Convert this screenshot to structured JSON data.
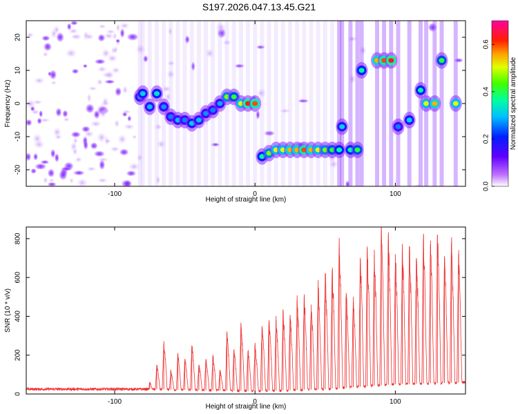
{
  "figure": {
    "title": "S197.2026.047.13.45.G21"
  },
  "chart_data": [
    {
      "type": "heatmap",
      "title": "",
      "xlabel": "Height of straight line (km)",
      "ylabel": "Frequency (Hz)",
      "xlim": [
        -163,
        150
      ],
      "ylim": [
        -25,
        25
      ],
      "xticks": [
        -100,
        0,
        100
      ],
      "yticks": [
        -20,
        -10,
        0,
        10,
        20
      ],
      "colorbar": {
        "label": "Normalized spectral amplitude",
        "range": [
          0.0,
          0.7
        ],
        "ticks": [
          0.0,
          0.2,
          0.4,
          0.6
        ]
      },
      "colormap": [
        "#ffffff",
        "#9b30ff",
        "#0000ff",
        "#00ffff",
        "#00ff00",
        "#ffff00",
        "#ff8000",
        "#ff0000",
        "#ff00c0"
      ],
      "main_track": [
        {
          "x": -82,
          "f": 2,
          "amp": 0.3
        },
        {
          "x": -80,
          "f": 3,
          "amp": 0.3
        },
        {
          "x": -75,
          "f": -1,
          "amp": 0.28
        },
        {
          "x": -70,
          "f": 3,
          "amp": 0.32
        },
        {
          "x": -65,
          "f": -1,
          "amp": 0.26
        },
        {
          "x": -60,
          "f": -4,
          "amp": 0.25
        },
        {
          "x": -55,
          "f": -5,
          "amp": 0.28
        },
        {
          "x": -50,
          "f": -5,
          "amp": 0.25
        },
        {
          "x": -45,
          "f": -6,
          "amp": 0.3
        },
        {
          "x": -40,
          "f": -5,
          "amp": 0.28
        },
        {
          "x": -35,
          "f": -3,
          "amp": 0.26
        },
        {
          "x": -30,
          "f": -2,
          "amp": 0.25
        },
        {
          "x": -25,
          "f": 0,
          "amp": 0.27
        },
        {
          "x": -20,
          "f": 2,
          "amp": 0.45
        },
        {
          "x": -15,
          "f": 2,
          "amp": 0.4
        },
        {
          "x": -10,
          "f": 0,
          "amp": 0.5
        },
        {
          "x": -5,
          "f": 0,
          "amp": 0.62
        },
        {
          "x": 0,
          "f": 0,
          "amp": 0.6
        },
        {
          "x": 5,
          "f": -16,
          "amp": 0.35
        },
        {
          "x": 10,
          "f": -15,
          "amp": 0.45
        },
        {
          "x": 15,
          "f": -14,
          "amp": 0.5
        },
        {
          "x": 20,
          "f": -14,
          "amp": 0.5
        },
        {
          "x": 25,
          "f": -14,
          "amp": 0.55
        },
        {
          "x": 30,
          "f": -14,
          "amp": 0.55
        },
        {
          "x": 35,
          "f": -14,
          "amp": 0.6
        },
        {
          "x": 40,
          "f": -14,
          "amp": 0.55
        },
        {
          "x": 45,
          "f": -14,
          "amp": 0.5
        },
        {
          "x": 50,
          "f": -14,
          "amp": 0.45
        },
        {
          "x": 55,
          "f": -14,
          "amp": 0.4
        },
        {
          "x": 60,
          "f": -14,
          "amp": 0.35
        },
        {
          "x": 62,
          "f": -7,
          "amp": 0.3
        },
        {
          "x": 68,
          "f": -14,
          "amp": 0.35
        },
        {
          "x": 73,
          "f": -14,
          "amp": 0.4
        },
        {
          "x": 76,
          "f": 10,
          "amp": 0.35
        },
        {
          "x": 87,
          "f": 13,
          "amp": 0.55
        },
        {
          "x": 92,
          "f": 13,
          "amp": 0.6
        },
        {
          "x": 97,
          "f": 13,
          "amp": 0.65
        },
        {
          "x": 102,
          "f": -7,
          "amp": 0.25
        },
        {
          "x": 110,
          "f": -5,
          "amp": 0.3
        },
        {
          "x": 118,
          "f": 4,
          "amp": 0.35
        },
        {
          "x": 122,
          "f": 0,
          "amp": 0.5
        },
        {
          "x": 128,
          "f": 0,
          "amp": 0.55
        },
        {
          "x": 133,
          "f": 13,
          "amp": 0.4
        },
        {
          "x": 143,
          "f": 0,
          "amp": 0.5
        }
      ]
    },
    {
      "type": "line",
      "title": "",
      "xlabel": "Height of straight line (km)",
      "ylabel": "SNR (10 * v/v)",
      "xlim": [
        -163,
        150
      ],
      "ylim": [
        0,
        860
      ],
      "xticks": [
        -100,
        0,
        100
      ],
      "yticks": [
        0,
        200,
        400,
        600,
        800
      ],
      "line_color": "#ee3030",
      "pulse_spacing_km": 5,
      "baseline": [
        {
          "x": -163,
          "y": 25
        },
        {
          "x": -80,
          "y": 25
        },
        {
          "x": -40,
          "y": 20
        },
        {
          "x": 0,
          "y": 15
        },
        {
          "x": 50,
          "y": 25
        },
        {
          "x": 100,
          "y": 50
        },
        {
          "x": 150,
          "y": 60
        }
      ],
      "pulse_peaks": [
        {
          "x": -75,
          "y": 60
        },
        {
          "x": -70,
          "y": 150
        },
        {
          "x": -65,
          "y": 260
        },
        {
          "x": -60,
          "y": 120
        },
        {
          "x": -55,
          "y": 200
        },
        {
          "x": -50,
          "y": 180
        },
        {
          "x": -45,
          "y": 250
        },
        {
          "x": -40,
          "y": 150
        },
        {
          "x": -35,
          "y": 180
        },
        {
          "x": -30,
          "y": 190
        },
        {
          "x": -25,
          "y": 120
        },
        {
          "x": -20,
          "y": 310
        },
        {
          "x": -15,
          "y": 230
        },
        {
          "x": -10,
          "y": 360
        },
        {
          "x": -5,
          "y": 220
        },
        {
          "x": 0,
          "y": 250
        },
        {
          "x": 5,
          "y": 350
        },
        {
          "x": 10,
          "y": 380
        },
        {
          "x": 15,
          "y": 380
        },
        {
          "x": 20,
          "y": 420
        },
        {
          "x": 25,
          "y": 400
        },
        {
          "x": 30,
          "y": 480
        },
        {
          "x": 35,
          "y": 500
        },
        {
          "x": 40,
          "y": 460
        },
        {
          "x": 45,
          "y": 550
        },
        {
          "x": 50,
          "y": 620
        },
        {
          "x": 55,
          "y": 640
        },
        {
          "x": 60,
          "y": 760
        },
        {
          "x": 65,
          "y": 520
        },
        {
          "x": 70,
          "y": 500
        },
        {
          "x": 75,
          "y": 700
        },
        {
          "x": 80,
          "y": 750
        },
        {
          "x": 85,
          "y": 720
        },
        {
          "x": 90,
          "y": 840
        },
        {
          "x": 95,
          "y": 790
        },
        {
          "x": 100,
          "y": 720
        },
        {
          "x": 105,
          "y": 740
        },
        {
          "x": 110,
          "y": 760
        },
        {
          "x": 115,
          "y": 700
        },
        {
          "x": 120,
          "y": 800
        },
        {
          "x": 125,
          "y": 770
        },
        {
          "x": 130,
          "y": 820
        },
        {
          "x": 135,
          "y": 710
        },
        {
          "x": 140,
          "y": 780
        },
        {
          "x": 145,
          "y": 720
        }
      ]
    }
  ]
}
